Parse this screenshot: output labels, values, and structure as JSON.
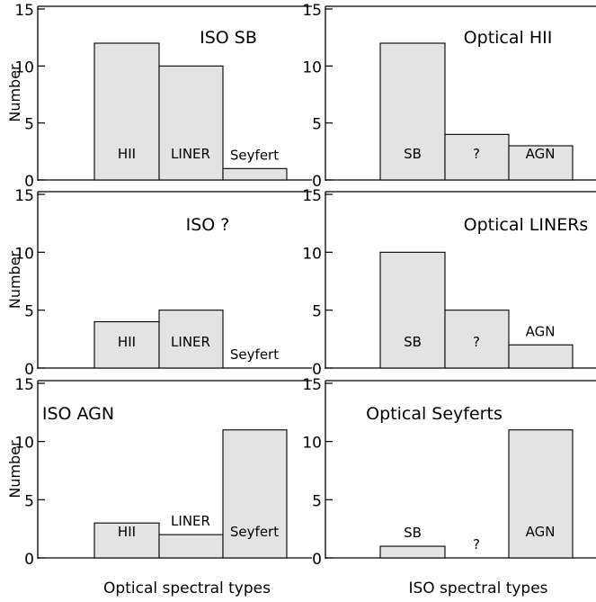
{
  "figure": {
    "y_axis_label": "Number",
    "x_axis_label_left": "Optical spectral types",
    "x_axis_label_right": "ISO spectral types"
  },
  "colors": {
    "bar_fill": "#e3e3e3",
    "line": "#000000",
    "background": "#ffffff"
  },
  "chart_data": [
    {
      "type": "bar",
      "panel": "top-left",
      "title": "ISO SB",
      "categories": [
        "HII",
        "LINER",
        "Seyfert"
      ],
      "values": [
        12,
        10,
        1
      ],
      "ylim": [
        0,
        15
      ],
      "yticks": [
        "0",
        "5",
        "10",
        "15"
      ],
      "ylabel": "Number",
      "xlabel": ""
    },
    {
      "type": "bar",
      "panel": "top-right",
      "title": "Optical HII",
      "categories": [
        "SB",
        "?",
        "AGN"
      ],
      "values": [
        12,
        4,
        3
      ],
      "ylim": [
        0,
        15
      ],
      "yticks": [
        "0",
        "5",
        "10",
        "15"
      ],
      "ylabel": "",
      "xlabel": ""
    },
    {
      "type": "bar",
      "panel": "middle-left",
      "title": "ISO ?",
      "categories": [
        "HII",
        "LINER",
        "Seyfert"
      ],
      "values": [
        4,
        5,
        0
      ],
      "ylim": [
        0,
        15
      ],
      "yticks": [
        "0",
        "5",
        "10",
        "15"
      ],
      "ylabel": "Number",
      "xlabel": ""
    },
    {
      "type": "bar",
      "panel": "middle-right",
      "title": "Optical LINERs",
      "categories": [
        "SB",
        "?",
        "AGN"
      ],
      "values": [
        10,
        5,
        2
      ],
      "ylim": [
        0,
        15
      ],
      "yticks": [
        "0",
        "5",
        "10",
        "15"
      ],
      "ylabel": "",
      "xlabel": ""
    },
    {
      "type": "bar",
      "panel": "bottom-left",
      "title": "ISO AGN",
      "categories": [
        "HII",
        "LINER",
        "Seyfert"
      ],
      "values": [
        3,
        2,
        11
      ],
      "ylim": [
        0,
        15
      ],
      "yticks": [
        "0",
        "5",
        "10",
        "15"
      ],
      "ylabel": "Number",
      "xlabel": "Optical spectral types"
    },
    {
      "type": "bar",
      "panel": "bottom-right",
      "title": "Optical Seyferts",
      "categories": [
        "SB",
        "?",
        "AGN"
      ],
      "values": [
        1,
        0,
        11
      ],
      "ylim": [
        0,
        15
      ],
      "yticks": [
        "0",
        "5",
        "10",
        "15"
      ],
      "ylabel": "",
      "xlabel": "ISO spectral types"
    }
  ]
}
